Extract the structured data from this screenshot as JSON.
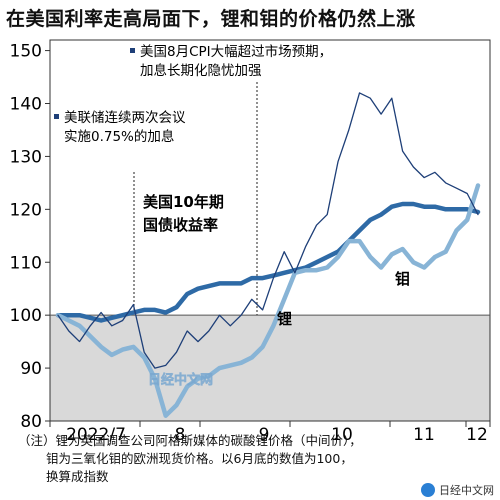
{
  "title": "在美国利率走高局面下，锂和钼的价格仍然上涨",
  "colors": {
    "us10y": "#2e6aa6",
    "lithium": "#88b4d6",
    "molybdenum": "#1e3f78",
    "shade": "#d9d9d9",
    "bg": "#ffffff"
  },
  "annotations": {
    "cpi_line1": "美国8月CPI大幅超过市场预期，",
    "cpi_line2": "加息长期化隐忧加强",
    "fed_line1": "美联储连续两次会议",
    "fed_line2": "实施0.75%的加息",
    "us10y_line1": "美国10年期",
    "us10y_line2": "国债收益率",
    "lithium": "锂",
    "molybdenum": "钼"
  },
  "watermark": "日经中文网",
  "note": {
    "line1": "（注）锂为英国调查公司阿格斯媒体的碳酸锂价格（中间价），",
    "line2": "钼为三氧化钼的欧洲现货价格。以6月底的数值为100，",
    "line3": "换算成指数"
  },
  "brand": "日经中文网",
  "chart_data": {
    "type": "line",
    "x_tick_labels": [
      "2022/7",
      "8",
      "9",
      "10",
      "11",
      "12"
    ],
    "y_ticks": [
      80,
      90,
      100,
      110,
      120,
      130,
      140,
      150
    ],
    "ylim": [
      80,
      152
    ],
    "baseline": 100,
    "series": [
      {
        "name": "美国10年期国债收益率",
        "values": [
          100,
          100,
          100,
          99.5,
          99,
          99.5,
          100,
          100.5,
          101,
          101,
          100.5,
          101.5,
          104,
          105,
          105.5,
          106,
          106,
          106,
          107,
          107,
          107.5,
          108,
          108.5,
          109,
          110,
          111,
          112,
          114,
          116,
          118,
          119,
          120.5,
          121,
          121,
          120.5,
          120.5,
          120,
          120,
          120,
          119.5
        ]
      },
      {
        "name": "锂",
        "values": [
          100,
          99,
          98,
          96,
          94,
          92.5,
          93.5,
          94,
          92,
          88,
          81,
          83,
          86.5,
          88,
          88.5,
          90,
          90.5,
          91,
          92,
          94,
          98,
          103,
          108,
          108.5,
          108.5,
          109,
          111,
          114,
          114,
          111,
          109,
          111.5,
          112.5,
          110,
          109,
          111,
          112,
          116,
          118,
          124.5
        ]
      },
      {
        "name": "钼",
        "values": [
          100,
          97,
          95,
          98,
          100.5,
          98,
          99,
          102,
          93,
          90,
          90.5,
          93,
          97,
          95,
          97,
          100,
          98,
          100,
          103,
          101,
          107,
          112,
          108,
          113,
          117,
          119,
          129,
          135,
          142,
          141,
          138,
          141,
          131,
          128,
          126,
          127,
          125,
          124,
          123,
          119
        ]
      }
    ]
  }
}
